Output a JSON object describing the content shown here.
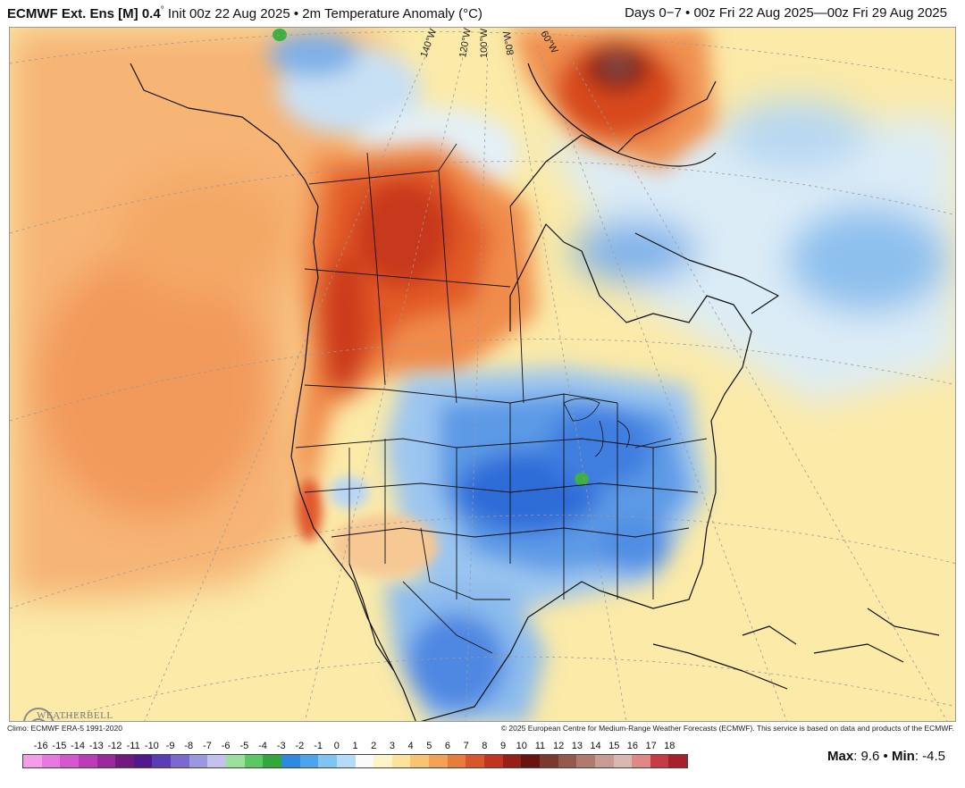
{
  "header": {
    "model": "ECMWF Ext. Ens [M]",
    "resolution": "0.4",
    "resolution_unit": "°",
    "init": "Init 00z 22 Aug 2025",
    "sep": "•",
    "variable": "2m Temperature Anomaly (°C)",
    "days": "Days 0−7",
    "valid": "00z Fri 22 Aug 2025—00z Fri 29 Aug 2025"
  },
  "map": {
    "longitude_labels": [
      "140°W",
      "120°W",
      "100°W",
      "80°W",
      "60°W"
    ],
    "anomaly_regions": [
      {
        "region": "Pacific Northwest / Western Canada",
        "level": "warm",
        "color": "#d4401c"
      },
      {
        "region": "Greenland interior",
        "level": "very-warm",
        "color": "#5a1410"
      },
      {
        "region": "Central & Eastern United States",
        "level": "cool",
        "color": "#2f74dc"
      },
      {
        "region": "Northern Mexico",
        "level": "cool",
        "color": "#5d93e4"
      },
      {
        "region": "Baffin / Labrador Sea",
        "level": "cool",
        "color": "#4f8ee2"
      },
      {
        "region": "Atlantic Ocean",
        "level": "slightly-warm",
        "color": "#fbecab"
      },
      {
        "region": "Pacific Ocean",
        "level": "warm",
        "color": "#f4ad6c"
      }
    ],
    "logo": "WEATHERBELL"
  },
  "footer": {
    "climo": "Climo: ECMWF ERA-5 1991-2020",
    "copyright": "© 2025 European Centre for Medium-Range Weather Forecasts (ECMWF). This service is based on data and products of the ECMWF."
  },
  "scale": {
    "labels": [
      "-16",
      "-15",
      "-14",
      "-13",
      "-12",
      "-11",
      "-10",
      "-9",
      "-8",
      "-7",
      "-6",
      "-5",
      "-4",
      "-3",
      "-2",
      "-1",
      "0",
      "1",
      "2",
      "3",
      "4",
      "5",
      "6",
      "7",
      "8",
      "9",
      "10",
      "11",
      "12",
      "13",
      "14",
      "15",
      "16",
      "17",
      "18"
    ],
    "colors": [
      "#f59ee8",
      "#e878e0",
      "#d656cf",
      "#bc3cb8",
      "#98289c",
      "#701a80",
      "#4e1a8c",
      "#5a3cb4",
      "#7a6ad0",
      "#9c98e0",
      "#c2c2ec",
      "#9ce0a0",
      "#5cc864",
      "#32a83c",
      "#2e8ae0",
      "#4ea4ea",
      "#80c4f2",
      "#b4dcf8",
      "#fafafa",
      "#fdf4c8",
      "#fce39c",
      "#f8c474",
      "#f2a252",
      "#e87c3a",
      "#d8562a",
      "#c23420",
      "#962018",
      "#681410",
      "#7a3a30",
      "#94584c",
      "#b07a6e",
      "#c89c92",
      "#dab8b2",
      "#e08888",
      "#c83a44",
      "#a8202c"
    ]
  },
  "stats": {
    "max_label": "Max",
    "max_value": ": 9.6",
    "sep": "•",
    "min_label": "Min",
    "min_value": ": -4.5"
  }
}
